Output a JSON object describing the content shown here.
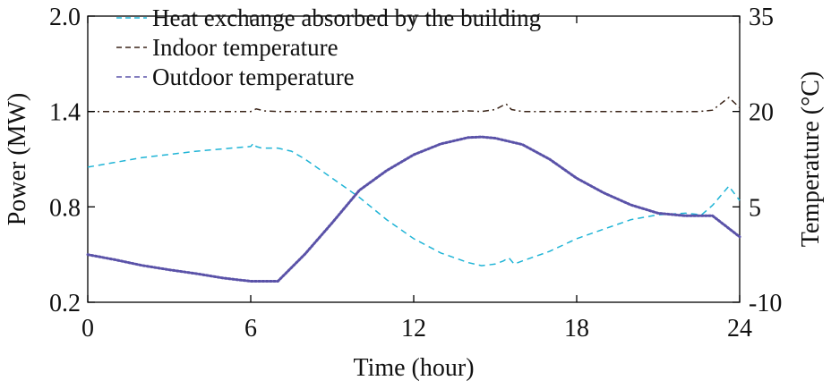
{
  "chart_data": {
    "type": "line",
    "xlabel": "Time (hour)",
    "ylabel_left": "Power (MW)",
    "ylabel_right": "Temperature (°C)",
    "xlim": [
      0,
      24
    ],
    "ylim_left": [
      0.2,
      2.0
    ],
    "ylim_right": [
      -10,
      35
    ],
    "x_ticks": [
      0,
      6,
      12,
      18,
      24
    ],
    "x_tick_labels": [
      "0",
      "6",
      "12",
      "18",
      "24"
    ],
    "y_left_ticks": [
      0.2,
      0.8,
      1.4,
      2.0
    ],
    "y_left_tick_labels": [
      "0.2",
      "0.8",
      "1.4",
      "2.0"
    ],
    "y_right_ticks": [
      -10,
      5,
      20,
      35
    ],
    "y_right_tick_labels": [
      "-10",
      "5",
      "20",
      "35"
    ],
    "legend_position": "top-left",
    "grid": false,
    "series": [
      {
        "name": "Heat exchange absorbed by the building",
        "axis": "left",
        "color": "#1fb4d6",
        "dash": "dashed",
        "x": [
          0,
          1,
          2,
          3,
          4,
          5,
          6,
          6.1,
          6.2,
          6.4,
          7,
          7.5,
          8,
          9,
          10,
          11,
          12,
          13,
          13.5,
          14,
          14.5,
          15,
          15.3,
          15.5,
          15.7,
          16,
          17,
          18,
          19,
          20,
          21,
          22,
          22.6,
          23,
          23.6,
          24
        ],
        "y": [
          1.05,
          1.08,
          1.11,
          1.13,
          1.15,
          1.165,
          1.18,
          1.2,
          1.18,
          1.17,
          1.17,
          1.15,
          1.1,
          0.98,
          0.86,
          0.72,
          0.6,
          0.51,
          0.48,
          0.45,
          0.43,
          0.44,
          0.46,
          0.48,
          0.44,
          0.46,
          0.52,
          0.6,
          0.66,
          0.72,
          0.75,
          0.76,
          0.75,
          0.81,
          0.93,
          0.84
        ]
      },
      {
        "name": "Indoor temperature",
        "axis": "right",
        "color": "#3a2418",
        "dash": "dashdot",
        "x": [
          0,
          6,
          6.2,
          6.5,
          7,
          12,
          13.5,
          14,
          14.5,
          15,
          15.4,
          15.6,
          16,
          22.5,
          23,
          23.6,
          24
        ],
        "y": [
          20,
          20,
          20.4,
          20.1,
          20,
          20,
          20,
          20.1,
          20,
          20.3,
          21.2,
          20.3,
          20,
          20,
          20.2,
          22.2,
          20.6
        ]
      },
      {
        "name": "Outdoor temperature",
        "axis": "right",
        "color": "#5a52a8",
        "dash": "dotted",
        "x": [
          0,
          1,
          2,
          3,
          4,
          5,
          6,
          7,
          8,
          9,
          10,
          11,
          12,
          13,
          14,
          14.5,
          15,
          16,
          17,
          18,
          19,
          20,
          21,
          22,
          23,
          24
        ],
        "y": [
          -2.5,
          -3.3,
          -4.2,
          -4.9,
          -5.5,
          -6.2,
          -6.7,
          -6.7,
          -2.4,
          2.5,
          7.6,
          10.7,
          13.2,
          14.9,
          15.9,
          16.0,
          15.8,
          14.8,
          12.5,
          9.5,
          7.2,
          5.3,
          4.0,
          3.6,
          3.6,
          0.3
        ]
      }
    ]
  }
}
